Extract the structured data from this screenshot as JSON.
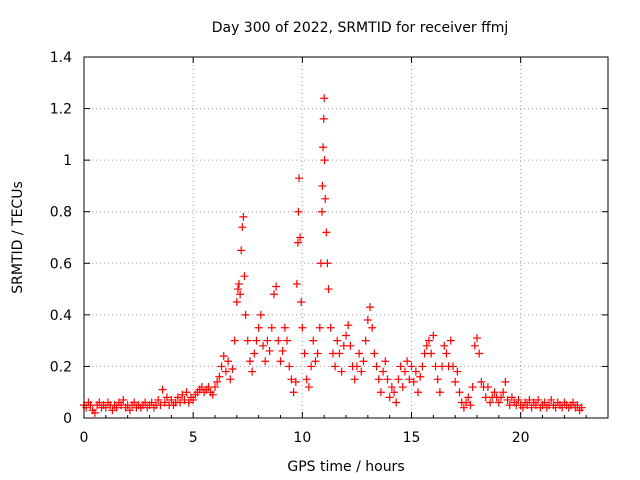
{
  "chart_data": {
    "type": "scatter",
    "title": "Day 300 of 2022, SRMTID for receiver ffmj",
    "xlabel": "GPS time / hours",
    "ylabel": "SRMTID / TECUs",
    "xlim": [
      0,
      24
    ],
    "ylim": [
      0,
      1.4
    ],
    "xticks": [
      0,
      5,
      10,
      15,
      20
    ],
    "xtick_labels": [
      "0",
      "5",
      "10",
      "15",
      "20"
    ],
    "yticks": [
      0,
      0.2,
      0.4,
      0.6,
      0.8,
      1.0,
      1.2,
      1.4
    ],
    "ytick_labels": [
      "0",
      "0.2",
      "0.4",
      "0.6",
      "0.8",
      "1",
      "1.2",
      "1.4"
    ],
    "grid": true,
    "marker": "+",
    "color": "#ff0000",
    "series": [
      {
        "name": "SRMTID",
        "points": [
          [
            0.0,
            0.05
          ],
          [
            0.1,
            0.04
          ],
          [
            0.2,
            0.06
          ],
          [
            0.3,
            0.05
          ],
          [
            0.4,
            0.03
          ],
          [
            0.5,
            0.02
          ],
          [
            0.6,
            0.05
          ],
          [
            0.7,
            0.06
          ],
          [
            0.8,
            0.04
          ],
          [
            0.9,
            0.05
          ],
          [
            1.0,
            0.04
          ],
          [
            1.1,
            0.06
          ],
          [
            1.2,
            0.05
          ],
          [
            1.3,
            0.03
          ],
          [
            1.4,
            0.05
          ],
          [
            1.5,
            0.04
          ],
          [
            1.6,
            0.06
          ],
          [
            1.7,
            0.05
          ],
          [
            1.8,
            0.07
          ],
          [
            1.9,
            0.04
          ],
          [
            2.0,
            0.05
          ],
          [
            2.1,
            0.03
          ],
          [
            2.2,
            0.05
          ],
          [
            2.3,
            0.06
          ],
          [
            2.4,
            0.04
          ],
          [
            2.5,
            0.05
          ],
          [
            2.6,
            0.04
          ],
          [
            2.7,
            0.05
          ],
          [
            2.8,
            0.06
          ],
          [
            2.9,
            0.04
          ],
          [
            3.0,
            0.05
          ],
          [
            3.1,
            0.06
          ],
          [
            3.2,
            0.04
          ],
          [
            3.3,
            0.05
          ],
          [
            3.4,
            0.07
          ],
          [
            3.5,
            0.05
          ],
          [
            3.6,
            0.11
          ],
          [
            3.7,
            0.06
          ],
          [
            3.8,
            0.08
          ],
          [
            3.9,
            0.05
          ],
          [
            4.0,
            0.07
          ],
          [
            4.1,
            0.05
          ],
          [
            4.2,
            0.06
          ],
          [
            4.3,
            0.08
          ],
          [
            4.4,
            0.06
          ],
          [
            4.5,
            0.09
          ],
          [
            4.6,
            0.07
          ],
          [
            4.7,
            0.1
          ],
          [
            4.8,
            0.06
          ],
          [
            4.9,
            0.08
          ],
          [
            5.0,
            0.07
          ],
          [
            5.1,
            0.09
          ],
          [
            5.2,
            0.1
          ],
          [
            5.3,
            0.11
          ],
          [
            5.4,
            0.12
          ],
          [
            5.5,
            0.1
          ],
          [
            5.6,
            0.11
          ],
          [
            5.7,
            0.12
          ],
          [
            5.8,
            0.1
          ],
          [
            5.9,
            0.09
          ],
          [
            6.0,
            0.12
          ],
          [
            6.1,
            0.14
          ],
          [
            6.2,
            0.16
          ],
          [
            6.3,
            0.2
          ],
          [
            6.4,
            0.24
          ],
          [
            6.5,
            0.18
          ],
          [
            6.6,
            0.22
          ],
          [
            6.7,
            0.15
          ],
          [
            6.8,
            0.19
          ],
          [
            6.9,
            0.3
          ],
          [
            7.0,
            0.45
          ],
          [
            7.05,
            0.5
          ],
          [
            7.1,
            0.52
          ],
          [
            7.15,
            0.48
          ],
          [
            7.2,
            0.65
          ],
          [
            7.25,
            0.74
          ],
          [
            7.3,
            0.78
          ],
          [
            7.35,
            0.55
          ],
          [
            7.4,
            0.4
          ],
          [
            7.5,
            0.3
          ],
          [
            7.6,
            0.22
          ],
          [
            7.7,
            0.18
          ],
          [
            7.8,
            0.25
          ],
          [
            7.9,
            0.3
          ],
          [
            8.0,
            0.35
          ],
          [
            8.1,
            0.4
          ],
          [
            8.2,
            0.28
          ],
          [
            8.3,
            0.22
          ],
          [
            8.4,
            0.3
          ],
          [
            8.5,
            0.26
          ],
          [
            8.6,
            0.35
          ],
          [
            8.7,
            0.48
          ],
          [
            8.8,
            0.51
          ],
          [
            8.9,
            0.3
          ],
          [
            9.0,
            0.22
          ],
          [
            9.1,
            0.26
          ],
          [
            9.2,
            0.35
          ],
          [
            9.3,
            0.3
          ],
          [
            9.4,
            0.2
          ],
          [
            9.5,
            0.15
          ],
          [
            9.6,
            0.1
          ],
          [
            9.7,
            0.14
          ],
          [
            9.75,
            0.52
          ],
          [
            9.8,
            0.68
          ],
          [
            9.82,
            0.8
          ],
          [
            9.85,
            0.93
          ],
          [
            9.9,
            0.7
          ],
          [
            9.95,
            0.45
          ],
          [
            10.0,
            0.35
          ],
          [
            10.1,
            0.25
          ],
          [
            10.2,
            0.15
          ],
          [
            10.3,
            0.12
          ],
          [
            10.4,
            0.2
          ],
          [
            10.5,
            0.3
          ],
          [
            10.6,
            0.22
          ],
          [
            10.7,
            0.25
          ],
          [
            10.8,
            0.35
          ],
          [
            10.85,
            0.6
          ],
          [
            10.9,
            0.8
          ],
          [
            10.92,
            0.9
          ],
          [
            10.95,
            1.05
          ],
          [
            10.98,
            1.16
          ],
          [
            11.0,
            1.24
          ],
          [
            11.02,
            1.0
          ],
          [
            11.05,
            0.85
          ],
          [
            11.1,
            0.72
          ],
          [
            11.15,
            0.6
          ],
          [
            11.2,
            0.5
          ],
          [
            11.3,
            0.35
          ],
          [
            11.4,
            0.25
          ],
          [
            11.5,
            0.2
          ],
          [
            11.6,
            0.3
          ],
          [
            11.7,
            0.25
          ],
          [
            11.8,
            0.18
          ],
          [
            11.9,
            0.28
          ],
          [
            12.0,
            0.32
          ],
          [
            12.1,
            0.36
          ],
          [
            12.2,
            0.28
          ],
          [
            12.3,
            0.2
          ],
          [
            12.4,
            0.15
          ],
          [
            12.5,
            0.2
          ],
          [
            12.6,
            0.25
          ],
          [
            12.7,
            0.18
          ],
          [
            12.8,
            0.22
          ],
          [
            12.9,
            0.3
          ],
          [
            13.0,
            0.38
          ],
          [
            13.1,
            0.43
          ],
          [
            13.2,
            0.35
          ],
          [
            13.3,
            0.25
          ],
          [
            13.4,
            0.2
          ],
          [
            13.5,
            0.15
          ],
          [
            13.6,
            0.1
          ],
          [
            13.7,
            0.18
          ],
          [
            13.8,
            0.22
          ],
          [
            13.9,
            0.15
          ],
          [
            14.0,
            0.08
          ],
          [
            14.1,
            0.12
          ],
          [
            14.2,
            0.1
          ],
          [
            14.3,
            0.06
          ],
          [
            14.4,
            0.15
          ],
          [
            14.5,
            0.2
          ],
          [
            14.6,
            0.12
          ],
          [
            14.7,
            0.18
          ],
          [
            14.8,
            0.22
          ],
          [
            14.9,
            0.15
          ],
          [
            15.0,
            0.2
          ],
          [
            15.1,
            0.14
          ],
          [
            15.2,
            0.18
          ],
          [
            15.3,
            0.1
          ],
          [
            15.4,
            0.16
          ],
          [
            15.5,
            0.2
          ],
          [
            15.6,
            0.25
          ],
          [
            15.7,
            0.28
          ],
          [
            15.8,
            0.3
          ],
          [
            15.9,
            0.25
          ],
          [
            16.0,
            0.32
          ],
          [
            16.1,
            0.2
          ],
          [
            16.2,
            0.15
          ],
          [
            16.3,
            0.1
          ],
          [
            16.4,
            0.2
          ],
          [
            16.5,
            0.28
          ],
          [
            16.6,
            0.25
          ],
          [
            16.7,
            0.2
          ],
          [
            16.8,
            0.3
          ],
          [
            16.9,
            0.2
          ],
          [
            17.0,
            0.14
          ],
          [
            17.1,
            0.18
          ],
          [
            17.2,
            0.1
          ],
          [
            17.3,
            0.06
          ],
          [
            17.4,
            0.04
          ],
          [
            17.5,
            0.06
          ],
          [
            17.6,
            0.08
          ],
          [
            17.7,
            0.05
          ],
          [
            17.8,
            0.12
          ],
          [
            17.9,
            0.28
          ],
          [
            18.0,
            0.31
          ],
          [
            18.1,
            0.25
          ],
          [
            18.2,
            0.14
          ],
          [
            18.3,
            0.12
          ],
          [
            18.4,
            0.08
          ],
          [
            18.5,
            0.12
          ],
          [
            18.6,
            0.06
          ],
          [
            18.7,
            0.08
          ],
          [
            18.8,
            0.1
          ],
          [
            18.9,
            0.08
          ],
          [
            19.0,
            0.06
          ],
          [
            19.1,
            0.08
          ],
          [
            19.2,
            0.1
          ],
          [
            19.3,
            0.14
          ],
          [
            19.4,
            0.07
          ],
          [
            19.5,
            0.05
          ],
          [
            19.6,
            0.08
          ],
          [
            19.7,
            0.06
          ],
          [
            19.8,
            0.05
          ],
          [
            19.9,
            0.07
          ],
          [
            20.0,
            0.05
          ],
          [
            20.1,
            0.04
          ],
          [
            20.2,
            0.06
          ],
          [
            20.3,
            0.05
          ],
          [
            20.4,
            0.07
          ],
          [
            20.5,
            0.04
          ],
          [
            20.6,
            0.06
          ],
          [
            20.7,
            0.05
          ],
          [
            20.8,
            0.07
          ],
          [
            20.9,
            0.04
          ],
          [
            21.0,
            0.05
          ],
          [
            21.1,
            0.06
          ],
          [
            21.2,
            0.04
          ],
          [
            21.3,
            0.05
          ],
          [
            21.4,
            0.07
          ],
          [
            21.5,
            0.05
          ],
          [
            21.6,
            0.04
          ],
          [
            21.7,
            0.06
          ],
          [
            21.8,
            0.05
          ],
          [
            21.9,
            0.04
          ],
          [
            22.0,
            0.06
          ],
          [
            22.1,
            0.05
          ],
          [
            22.2,
            0.04
          ],
          [
            22.3,
            0.05
          ],
          [
            22.4,
            0.06
          ],
          [
            22.5,
            0.04
          ],
          [
            22.6,
            0.05
          ],
          [
            22.7,
            0.03
          ],
          [
            22.8,
            0.04
          ]
        ]
      }
    ]
  }
}
